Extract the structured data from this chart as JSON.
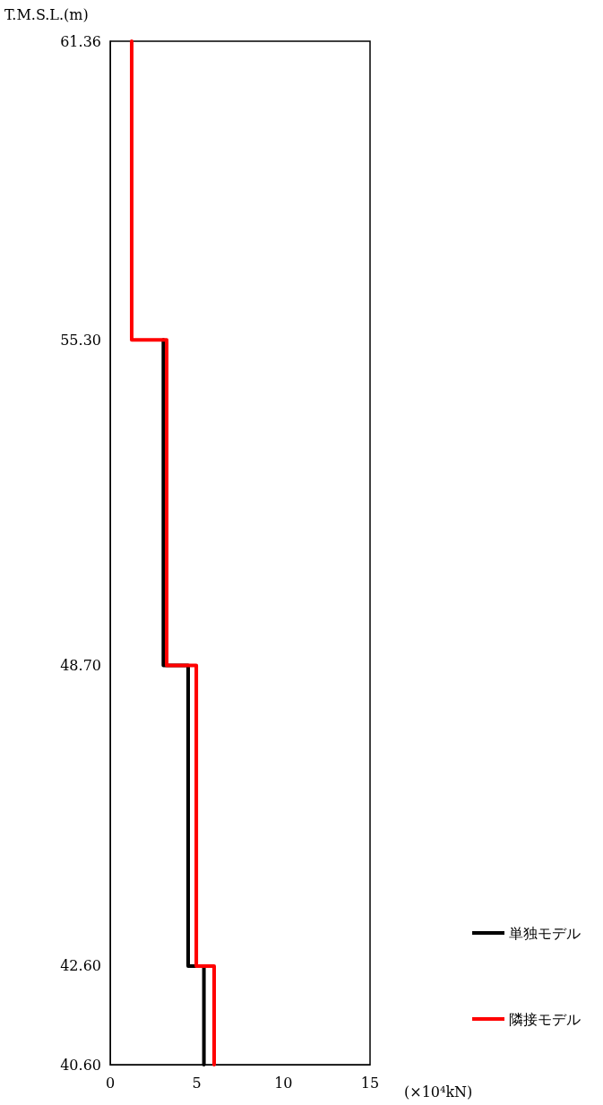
{
  "chart_data": {
    "type": "line",
    "ylabel": "T.M.S.L.(m)",
    "xlabel": "(×10⁴kN)",
    "series": [
      {
        "name": "単独モデル",
        "color": "#000000",
        "x": [
          3.07,
          3.07,
          4.5,
          4.5,
          5.41,
          5.41
        ],
        "values": [
          55.3,
          48.7,
          48.7,
          42.6,
          42.6,
          40.6
        ]
      },
      {
        "name": "隣接モデル",
        "color": "#ff0000",
        "x": [
          1.24,
          1.24,
          3.26,
          3.26,
          4.97,
          4.97,
          6.0,
          6.0
        ],
        "values": [
          61.36,
          55.3,
          55.3,
          48.7,
          48.7,
          42.6,
          42.6,
          40.6
        ]
      }
    ],
    "xlim": [
      0,
      15
    ],
    "xticks": [
      0,
      5,
      10,
      15
    ],
    "ylim": [
      40.6,
      61.36
    ],
    "yticks": [
      {
        "value": 40.6,
        "label": "40.60"
      },
      {
        "value": 42.6,
        "label": "42.60"
      },
      {
        "value": 48.7,
        "label": "48.70"
      },
      {
        "value": 55.3,
        "label": "55.30"
      },
      {
        "value": 61.36,
        "label": "61.36"
      }
    ],
    "grid": false,
    "legend": "bottom right",
    "marker": "none",
    "line_style": "solid"
  }
}
